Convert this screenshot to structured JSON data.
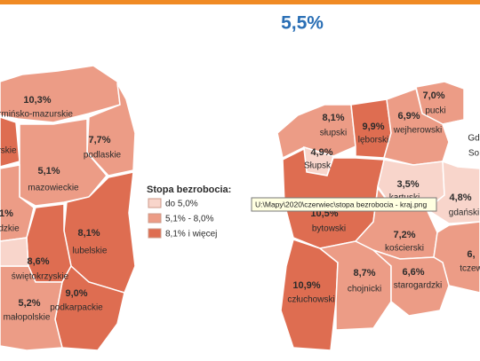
{
  "header": {
    "title": "5,5%"
  },
  "legend": {
    "title": "Stopa bezrobocia:",
    "items": [
      "do 5,0%",
      "5,1% - 8,0%",
      "8,1% i więcej"
    ]
  },
  "left_map": {
    "regions": [
      {
        "value": "10,3%",
        "name": "rmińsko-mazurskie"
      },
      {
        "name": "rskie"
      },
      {
        "value": "7,7%",
        "name": "podlaskie"
      },
      {
        "value": "5,1%",
        "name": "mazowieckie"
      },
      {
        "value": "1%",
        "name": "dzkie"
      },
      {
        "value": "8,1%",
        "name": "lubelskie"
      },
      {
        "value": "8,6%",
        "name": "świętokrzyskie"
      },
      {
        "value": "9,0%",
        "name": "podkarpackie"
      },
      {
        "value": "5,2%",
        "name": "małopolskie"
      }
    ]
  },
  "right_map": {
    "regions": [
      {
        "value": "7,0%",
        "name": "pucki"
      },
      {
        "value": "8,1%",
        "name": "słupski"
      },
      {
        "value": "9,9%",
        "name": "lęborski"
      },
      {
        "value": "6,9%",
        "name": "wejherowski"
      },
      {
        "name": "Gd"
      },
      {
        "name": "So"
      },
      {
        "value": "4,9%",
        "name": "Słupsk"
      },
      {
        "value": "3,5%",
        "name": "kartuski"
      },
      {
        "value": "4,8%",
        "name": "gdański"
      },
      {
        "value": "10,5%",
        "name": "bytowski"
      },
      {
        "value": "7,2%",
        "name": "kościerski"
      },
      {
        "value": "6,",
        "name": "tczew"
      },
      {
        "value": "10,9%",
        "name": "człuchowski"
      },
      {
        "value": "8,7%",
        "name": "chojnicki"
      },
      {
        "value": "6,6%",
        "name": "starogardzki"
      }
    ]
  },
  "tooltip": "U:\\Mapy\\2020\\czerwiec\\stopa bezrobocia - kraj.png"
}
